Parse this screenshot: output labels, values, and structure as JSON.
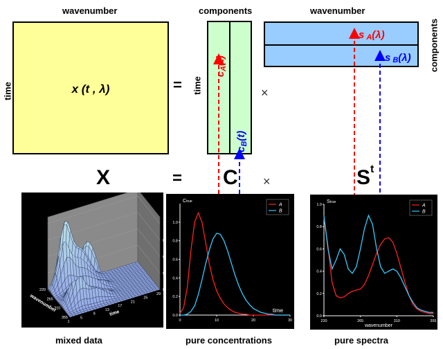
{
  "top_labels": {
    "wavenumber_left": "wavenumber",
    "components_top": "components",
    "wavenumber_right": "wavenumber",
    "time_left": "time",
    "time_mid": "time",
    "components_right": "components"
  },
  "matrix_x_label": {
    "var": "x",
    "args": "(t , λ)"
  },
  "equals": "=",
  "times": "×",
  "equation": {
    "X": "X",
    "C": "C",
    "S": "S",
    "S_sup": "t"
  },
  "c_matrix": {
    "colA": {
      "base": "c",
      "sub": "A",
      "arg": "(t)"
    },
    "colB": {
      "base": "c",
      "sub": "B",
      "arg": "(t)"
    }
  },
  "s_matrix": {
    "rowA": {
      "base": "s",
      "sub": "A",
      "arg": "(λ)"
    },
    "rowB": {
      "base": "s",
      "sub": "B",
      "arg": "(λ)"
    }
  },
  "colors": {
    "yellow_fill": "#ffff99",
    "green_fill": "#ccffcc",
    "blue_fill": "#99ccff",
    "red": "#ff0000",
    "blue": "#0000ff",
    "cyan": "#33ccff"
  },
  "captions": {
    "mixed": "mixed data",
    "conc": "pure concentrations",
    "spectra": "pure spectra"
  },
  "chart_data": [
    {
      "type": "line",
      "title": "C",
      "title_sub": "true",
      "xlabel": "time",
      "xlim": [
        0,
        30
      ],
      "ylim": [
        0,
        1.2
      ],
      "xticks": [
        "0",
        "10",
        "20",
        "30"
      ],
      "yticks": [
        "0.0",
        "0.2",
        "0.4",
        "0.6",
        "0.8",
        "1.0"
      ],
      "legend": [
        "A",
        "B"
      ],
      "x": [
        0,
        1,
        2,
        3,
        4,
        5,
        6,
        7,
        8,
        9,
        10,
        11,
        12,
        13,
        14,
        15,
        16,
        17,
        18,
        19,
        20,
        21,
        22,
        23,
        24,
        25,
        26,
        27,
        28,
        29,
        30
      ],
      "series": [
        {
          "name": "A",
          "color": "#ff2020",
          "values": [
            0.02,
            0.08,
            0.3,
            0.7,
            1.0,
            1.1,
            1.0,
            0.78,
            0.55,
            0.38,
            0.26,
            0.18,
            0.12,
            0.08,
            0.05,
            0.03,
            0.02,
            0.01,
            0.01,
            0,
            0,
            0,
            0,
            0,
            0,
            0,
            0,
            0,
            0,
            0,
            0
          ]
        },
        {
          "name": "B",
          "color": "#33ccff",
          "values": [
            0,
            0,
            0.01,
            0.04,
            0.1,
            0.22,
            0.38,
            0.55,
            0.7,
            0.82,
            0.88,
            0.87,
            0.8,
            0.69,
            0.56,
            0.43,
            0.32,
            0.23,
            0.16,
            0.11,
            0.07,
            0.05,
            0.03,
            0.02,
            0.01,
            0.01,
            0,
            0,
            0,
            0,
            0
          ]
        }
      ]
    },
    {
      "type": "line",
      "title": "S",
      "title_sub": "true",
      "xlabel": "wavenumber",
      "xlim": [
        220,
        355
      ],
      "ylim": [
        0,
        1.0
      ],
      "xticks": [
        "220",
        "265",
        "310",
        "355"
      ],
      "yticks": [
        "0.0",
        "0.2",
        "0.4",
        "0.6",
        "0.8",
        "1.0"
      ],
      "legend": [
        "A",
        "B"
      ],
      "x": [
        220,
        225,
        230,
        235,
        240,
        245,
        250,
        255,
        260,
        265,
        270,
        275,
        280,
        285,
        290,
        295,
        300,
        305,
        310,
        315,
        320,
        325,
        330,
        335,
        340,
        345,
        350,
        355
      ],
      "series": [
        {
          "name": "A",
          "color": "#ff2020",
          "values": [
            0.88,
            0.62,
            0.3,
            0.18,
            0.16,
            0.17,
            0.2,
            0.22,
            0.23,
            0.24,
            0.28,
            0.36,
            0.46,
            0.56,
            0.64,
            0.69,
            0.7,
            0.66,
            0.56,
            0.43,
            0.3,
            0.18,
            0.1,
            0.06,
            0.04,
            0.03,
            0.02,
            0.02
          ]
        },
        {
          "name": "B",
          "color": "#33ccff",
          "values": [
            0.9,
            0.6,
            0.42,
            0.5,
            0.6,
            0.55,
            0.42,
            0.38,
            0.44,
            0.6,
            0.78,
            0.9,
            0.82,
            0.6,
            0.44,
            0.38,
            0.4,
            0.42,
            0.4,
            0.34,
            0.26,
            0.18,
            0.12,
            0.07,
            0.05,
            0.04,
            0.03,
            0.03
          ]
        }
      ]
    },
    {
      "type": "surface",
      "x_axis_label": "wavenumber",
      "y_axis_label": "time",
      "z_ticks": [
        "0.0",
        "0.3",
        "0.6",
        "0.9",
        "1.2"
      ],
      "wavenumber_ticks": [
        "220",
        "265",
        "310",
        "355"
      ],
      "time_ticks": [
        "1",
        "5",
        "9",
        "13",
        "17",
        "21",
        "25",
        "29"
      ]
    }
  ]
}
